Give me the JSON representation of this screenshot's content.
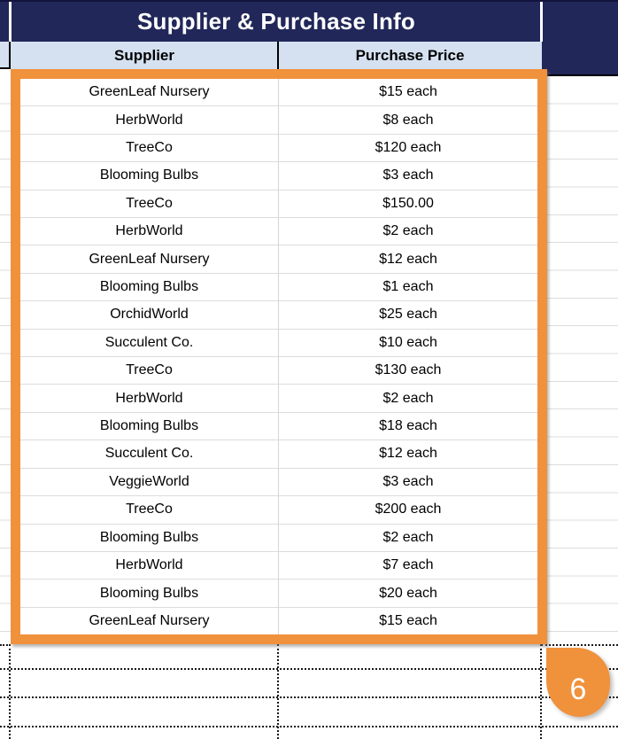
{
  "header": {
    "title": "Supplier & Purchase Info"
  },
  "columns": [
    {
      "label": "Supplier"
    },
    {
      "label": "Purchase Price"
    }
  ],
  "rows": [
    {
      "supplier": "GreenLeaf Nursery",
      "price": "$15 each"
    },
    {
      "supplier": "HerbWorld",
      "price": "$8 each"
    },
    {
      "supplier": "TreeCo",
      "price": "$120 each"
    },
    {
      "supplier": "Blooming Bulbs",
      "price": "$3 each"
    },
    {
      "supplier": "TreeCo",
      "price": "$150.00"
    },
    {
      "supplier": "HerbWorld",
      "price": "$2 each"
    },
    {
      "supplier": "GreenLeaf Nursery",
      "price": "$12 each"
    },
    {
      "supplier": "Blooming Bulbs",
      "price": "$1 each"
    },
    {
      "supplier": "OrchidWorld",
      "price": "$25 each"
    },
    {
      "supplier": "Succulent Co.",
      "price": "$10 each"
    },
    {
      "supplier": "TreeCo",
      "price": "$130 each"
    },
    {
      "supplier": "HerbWorld",
      "price": "$2 each"
    },
    {
      "supplier": "Blooming Bulbs",
      "price": "$18 each"
    },
    {
      "supplier": "Succulent Co.",
      "price": "$12 each"
    },
    {
      "supplier": "VeggieWorld",
      "price": "$3 each"
    },
    {
      "supplier": "TreeCo",
      "price": "$200 each"
    },
    {
      "supplier": "Blooming Bulbs",
      "price": "$2 each"
    },
    {
      "supplier": "HerbWorld",
      "price": "$7 each"
    },
    {
      "supplier": "Blooming Bulbs",
      "price": "$20 each"
    },
    {
      "supplier": "GreenLeaf Nursery",
      "price": "$15 each"
    }
  ],
  "badge": {
    "label": "6"
  },
  "colors": {
    "navy": "#212759",
    "header_blue": "#D5E1F1",
    "accent_orange": "#F0913C",
    "row_line": "#DCDCDC",
    "badge_text": "#FFFFFF"
  }
}
